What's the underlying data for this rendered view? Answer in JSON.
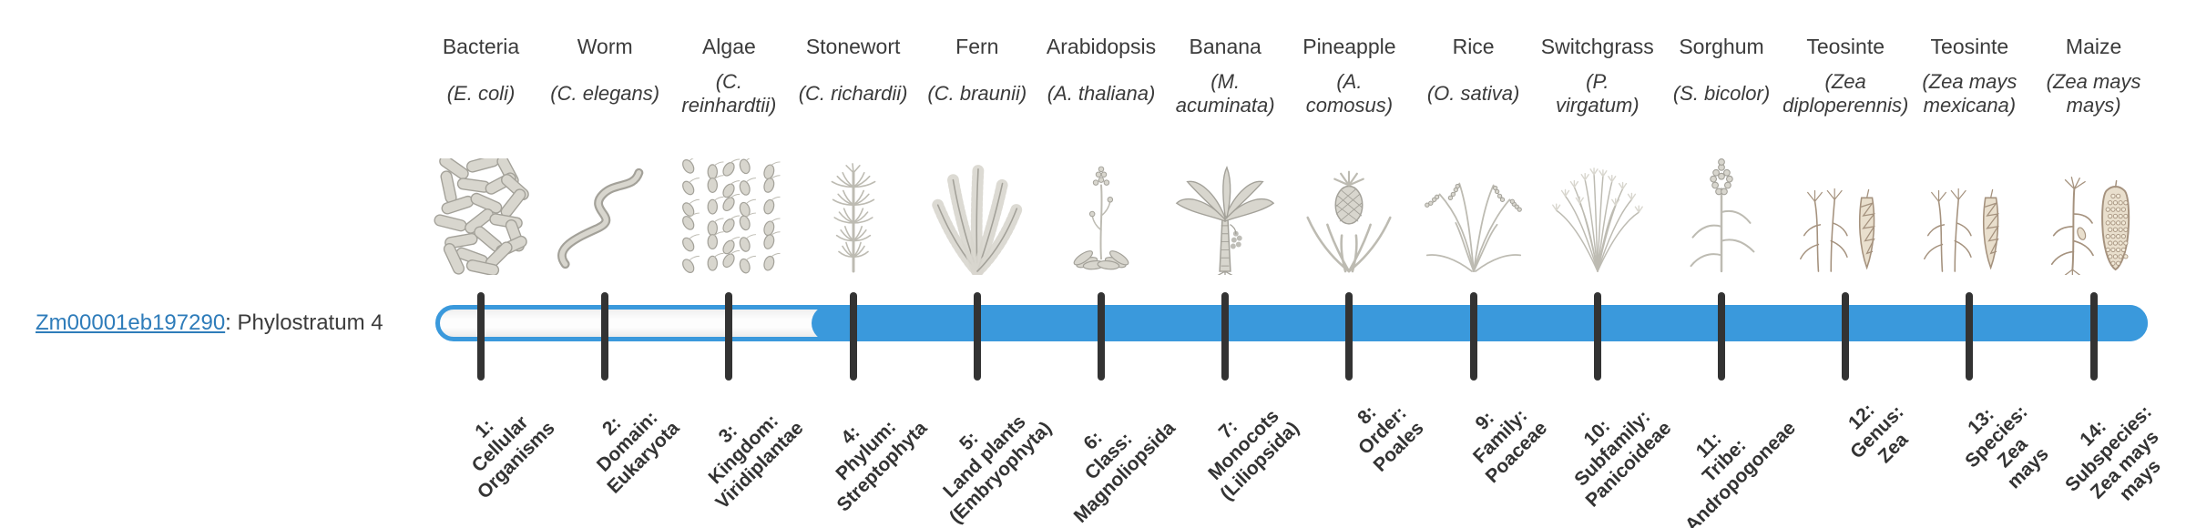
{
  "gene": {
    "id": "Zm00001eb197290",
    "annotation": ": Phylostratum 4"
  },
  "timeline": {
    "phylostratum": 4,
    "num_strata": 14
  },
  "colors": {
    "bar_fill": "#3a99dc",
    "bar_border": "#3a99dc",
    "track_background": "#fbfbfb",
    "tick": "#333333",
    "text": "#3b3b3b",
    "link": "#2e7cba",
    "stratum_label": "#333333",
    "icon_gray": "#a3a199",
    "icon_gray_fill": "#d8d6ce",
    "icon_gray_light": "#bdbbb2",
    "icon_sepia": "#a5927e",
    "icon_sepia_fill": "#e9dfcd"
  },
  "columns": [
    {
      "stratum": 1,
      "name": "Bacteria",
      "latin": "(E. coli)",
      "icon": "bacteria-icon",
      "stratum_label": "1:\nCellular\nOrganisms"
    },
    {
      "stratum": 2,
      "name": "Worm",
      "latin": "(C. elegans)",
      "icon": "worm-icon",
      "stratum_label": "2:\nDomain:\nEukaryota"
    },
    {
      "stratum": 3,
      "name": "Algae",
      "latin": "(C.\nreinhardtii)",
      "icon": "algae-icon",
      "stratum_label": "3:\nKingdom:\nViridiplantae"
    },
    {
      "stratum": 4,
      "name": "Stonewort",
      "latin": "(C. richardii)",
      "icon": "stonewort-icon",
      "stratum_label": "4:\nPhylum:\nStreptophyta"
    },
    {
      "stratum": 5,
      "name": "Fern",
      "latin": "(C. braunii)",
      "icon": "fern-icon",
      "stratum_label": "5:\nLand plants\n(Embryophyta)"
    },
    {
      "stratum": 6,
      "name": "Arabidopsis",
      "latin": "(A. thaliana)",
      "icon": "arabidopsis-icon",
      "stratum_label": "6:\nClass:\nMagnoliopsida"
    },
    {
      "stratum": 7,
      "name": "Banana",
      "latin": "(M.\nacuminata)",
      "icon": "banana-icon",
      "stratum_label": "7:\nMonocots\n(Liliopsida)"
    },
    {
      "stratum": 8,
      "name": "Pineapple",
      "latin": "(A.\ncomosus)",
      "icon": "pineapple-icon",
      "stratum_label": "8:\nOrder:\nPoales"
    },
    {
      "stratum": 9,
      "name": "Rice",
      "latin": "(O. sativa)",
      "icon": "rice-icon",
      "stratum_label": "9:\nFamily:\nPoaceae"
    },
    {
      "stratum": 10,
      "name": "Switchgrass",
      "latin": "(P.\nvirgatum)",
      "icon": "switchgrass-icon",
      "stratum_label": "10:\nSubfamily:\nPanicoideae"
    },
    {
      "stratum": 11,
      "name": "Sorghum",
      "latin": "(S. bicolor)",
      "icon": "sorghum-icon",
      "stratum_label": "11:\nTribe:\nAndropogoneae"
    },
    {
      "stratum": 12,
      "name": "Teosinte",
      "latin": "(Zea\ndiploperennis)",
      "icon": "teosinte-icon",
      "stratum_label": "12:\nGenus:\nZea"
    },
    {
      "stratum": 13,
      "name": "Teosinte",
      "latin": "(Zea mays\nmexicana)",
      "icon": "teosinte-icon",
      "stratum_label": "13:\nSpecies:\nZea\nmays"
    },
    {
      "stratum": 14,
      "name": "Maize",
      "latin": "(Zea mays\nmays)",
      "icon": "maize-icon",
      "stratum_label": "14:\nSubspecies:\nZea mays\nmays"
    }
  ]
}
